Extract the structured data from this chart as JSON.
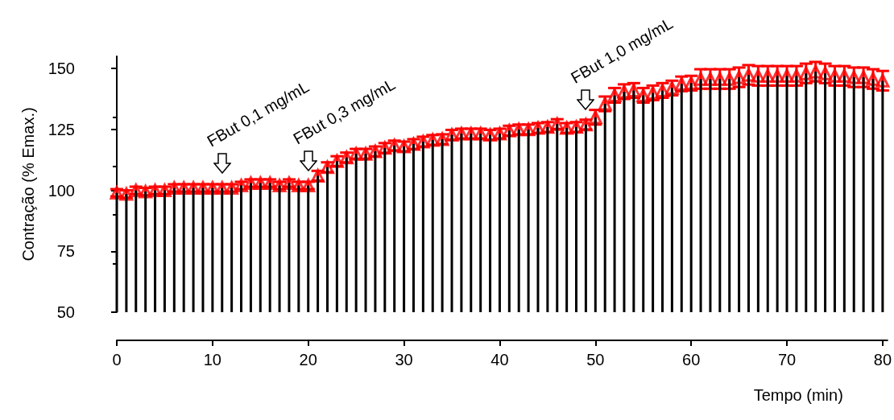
{
  "chart_data": {
    "type": "bar",
    "xlabel": "Tempo (min)",
    "ylabel": "Contração (% Emax.)",
    "x": [
      0,
      1,
      2,
      3,
      4,
      5,
      6,
      7,
      8,
      9,
      10,
      11,
      12,
      13,
      14,
      15,
      16,
      17,
      18,
      19,
      20,
      21,
      22,
      23,
      24,
      25,
      26,
      27,
      28,
      29,
      30,
      31,
      32,
      33,
      34,
      35,
      36,
      37,
      38,
      39,
      40,
      41,
      42,
      43,
      44,
      45,
      46,
      47,
      48,
      49,
      50,
      51,
      52,
      53,
      54,
      55,
      56,
      57,
      58,
      59,
      60,
      61,
      62,
      63,
      64,
      65,
      66,
      67,
      68,
      69,
      70,
      71,
      72,
      73,
      74,
      75,
      76,
      77,
      78,
      79,
      80
    ],
    "series": [
      {
        "color": "#000000",
        "values": [
          99,
          98.5,
          100,
          99.5,
          100,
          100,
          101,
          101,
          101,
          101,
          101,
          101,
          101,
          102,
          103,
          103,
          103,
          102,
          103,
          102,
          102,
          106,
          109.5,
          112,
          113.5,
          115,
          115,
          116,
          117.4,
          118.4,
          118,
          119,
          120,
          120.7,
          121,
          122.8,
          123.3,
          123.3,
          123.3,
          122.8,
          123.3,
          124.5,
          125,
          125,
          125.6,
          126,
          127.2,
          125.6,
          126,
          127,
          130,
          135.5,
          139,
          140.5,
          141,
          139,
          140,
          141,
          142,
          143.7,
          144,
          145.7,
          145.7,
          145.7,
          145.7,
          146.4,
          147.4,
          147,
          147,
          147,
          147,
          147,
          148,
          148.7,
          148,
          147,
          147,
          146.4,
          146.4,
          145.7,
          145
        ]
      },
      {
        "type": "scatter",
        "color": "#ff0000",
        "marker": "triangle",
        "values": [
          99,
          98.5,
          100,
          99.5,
          100,
          100,
          101,
          101,
          101,
          101,
          101,
          101,
          101,
          102,
          103,
          103,
          103,
          102,
          103,
          102,
          102,
          106,
          109.5,
          112,
          113.5,
          115,
          115,
          116,
          117.4,
          118.4,
          118,
          119,
          120,
          120.7,
          121,
          122.8,
          123.3,
          123.3,
          123.3,
          122.8,
          123.3,
          124.5,
          125,
          125,
          125.6,
          126,
          127.2,
          125.6,
          126,
          127,
          130,
          135.5,
          139,
          140.5,
          141,
          139,
          140,
          141,
          142,
          143.7,
          144,
          145.7,
          145.7,
          145.7,
          145.7,
          146.4,
          147.4,
          147,
          147,
          147,
          147,
          147,
          148,
          148.7,
          148,
          147,
          147,
          146.4,
          146.4,
          145.7,
          145
        ],
        "errors": [
          1.5,
          1.5,
          1.5,
          1.5,
          1.5,
          1.5,
          1.5,
          1.5,
          1.5,
          1.5,
          1.5,
          1.5,
          1.5,
          1.5,
          1.5,
          1.5,
          1.5,
          1.5,
          1.5,
          1.5,
          1.5,
          2,
          2,
          2,
          2,
          2,
          2,
          2,
          2,
          2,
          2,
          2,
          2,
          2,
          2,
          2,
          2,
          2,
          2,
          2,
          2,
          2,
          2,
          2,
          2,
          2,
          2,
          2,
          2,
          2,
          3,
          3,
          3,
          3,
          3,
          3,
          3,
          3,
          3,
          3,
          3,
          4,
          4,
          4,
          4,
          4,
          4,
          4,
          4,
          4,
          4,
          4,
          4,
          4,
          4,
          4,
          4,
          4,
          4,
          4,
          4
        ]
      }
    ],
    "xlim": [
      0,
      80.5
    ],
    "xticks": [
      0,
      10,
      20,
      30,
      40,
      50,
      60,
      70,
      80
    ],
    "ylim": [
      50,
      155
    ],
    "yticks": [
      50,
      75,
      100,
      125,
      150
    ],
    "grid": false,
    "annotations": [
      {
        "text": "FBut 0,1 mg/mL",
        "x": 11,
        "y": 101
      },
      {
        "text": "FBut 0,3 mg/mL",
        "x": 20,
        "y": 102
      },
      {
        "text": "FBut 1,0 mg/mL",
        "x": 49,
        "y": 127
      }
    ]
  }
}
